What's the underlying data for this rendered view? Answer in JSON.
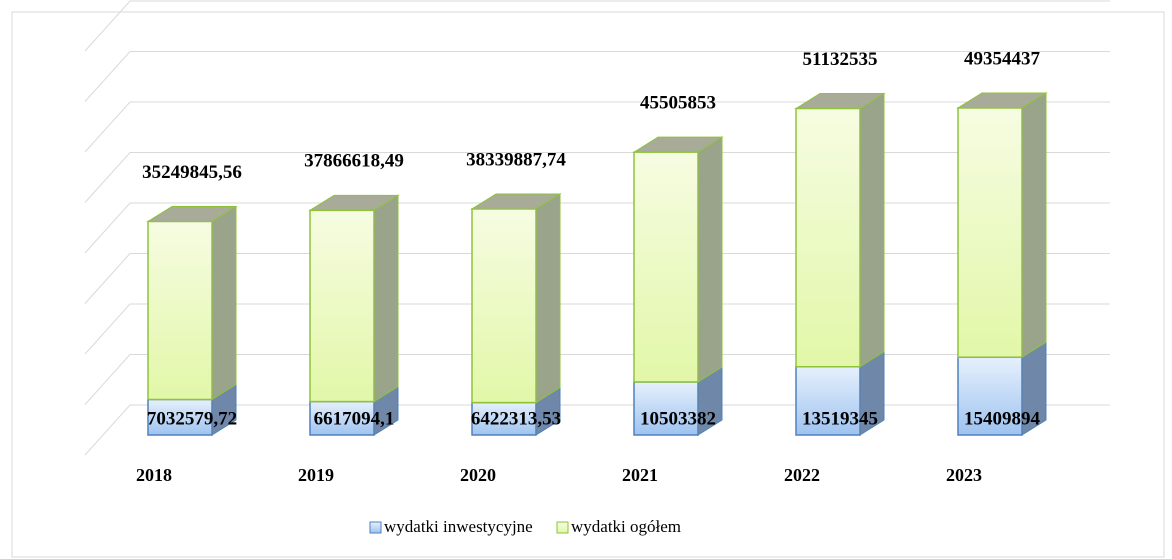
{
  "chart_data": {
    "type": "bar3d_stacked",
    "categories": [
      "2018",
      "2019",
      "2020",
      "2021",
      "2022",
      "2023"
    ],
    "series": [
      {
        "name": "wydatki inwestycyjne",
        "color": "#9ec3f0",
        "values": [
          7032579.72,
          6617094.1,
          6422313.53,
          10503382,
          13519345,
          15409894
        ],
        "value_labels": [
          "7032579,72",
          "6617094,1",
          "6422313,53",
          "10503382",
          "13519345",
          "15409894"
        ]
      },
      {
        "name": "wydatki ogółem",
        "color": "#e2f7a8",
        "values": [
          35249845.56,
          37866618.49,
          38339887.74,
          45505853,
          51132535,
          49354437
        ],
        "value_labels": [
          "35249845,56",
          "37866618,49",
          "38339887,74",
          "45505853",
          "51132535",
          "49354437"
        ]
      }
    ],
    "ylim": [
      0,
      80000000
    ],
    "yticks": [
      0,
      10000000,
      20000000,
      30000000,
      40000000,
      50000000,
      60000000,
      70000000,
      80000000
    ],
    "grid": true,
    "legend": "bottom"
  }
}
